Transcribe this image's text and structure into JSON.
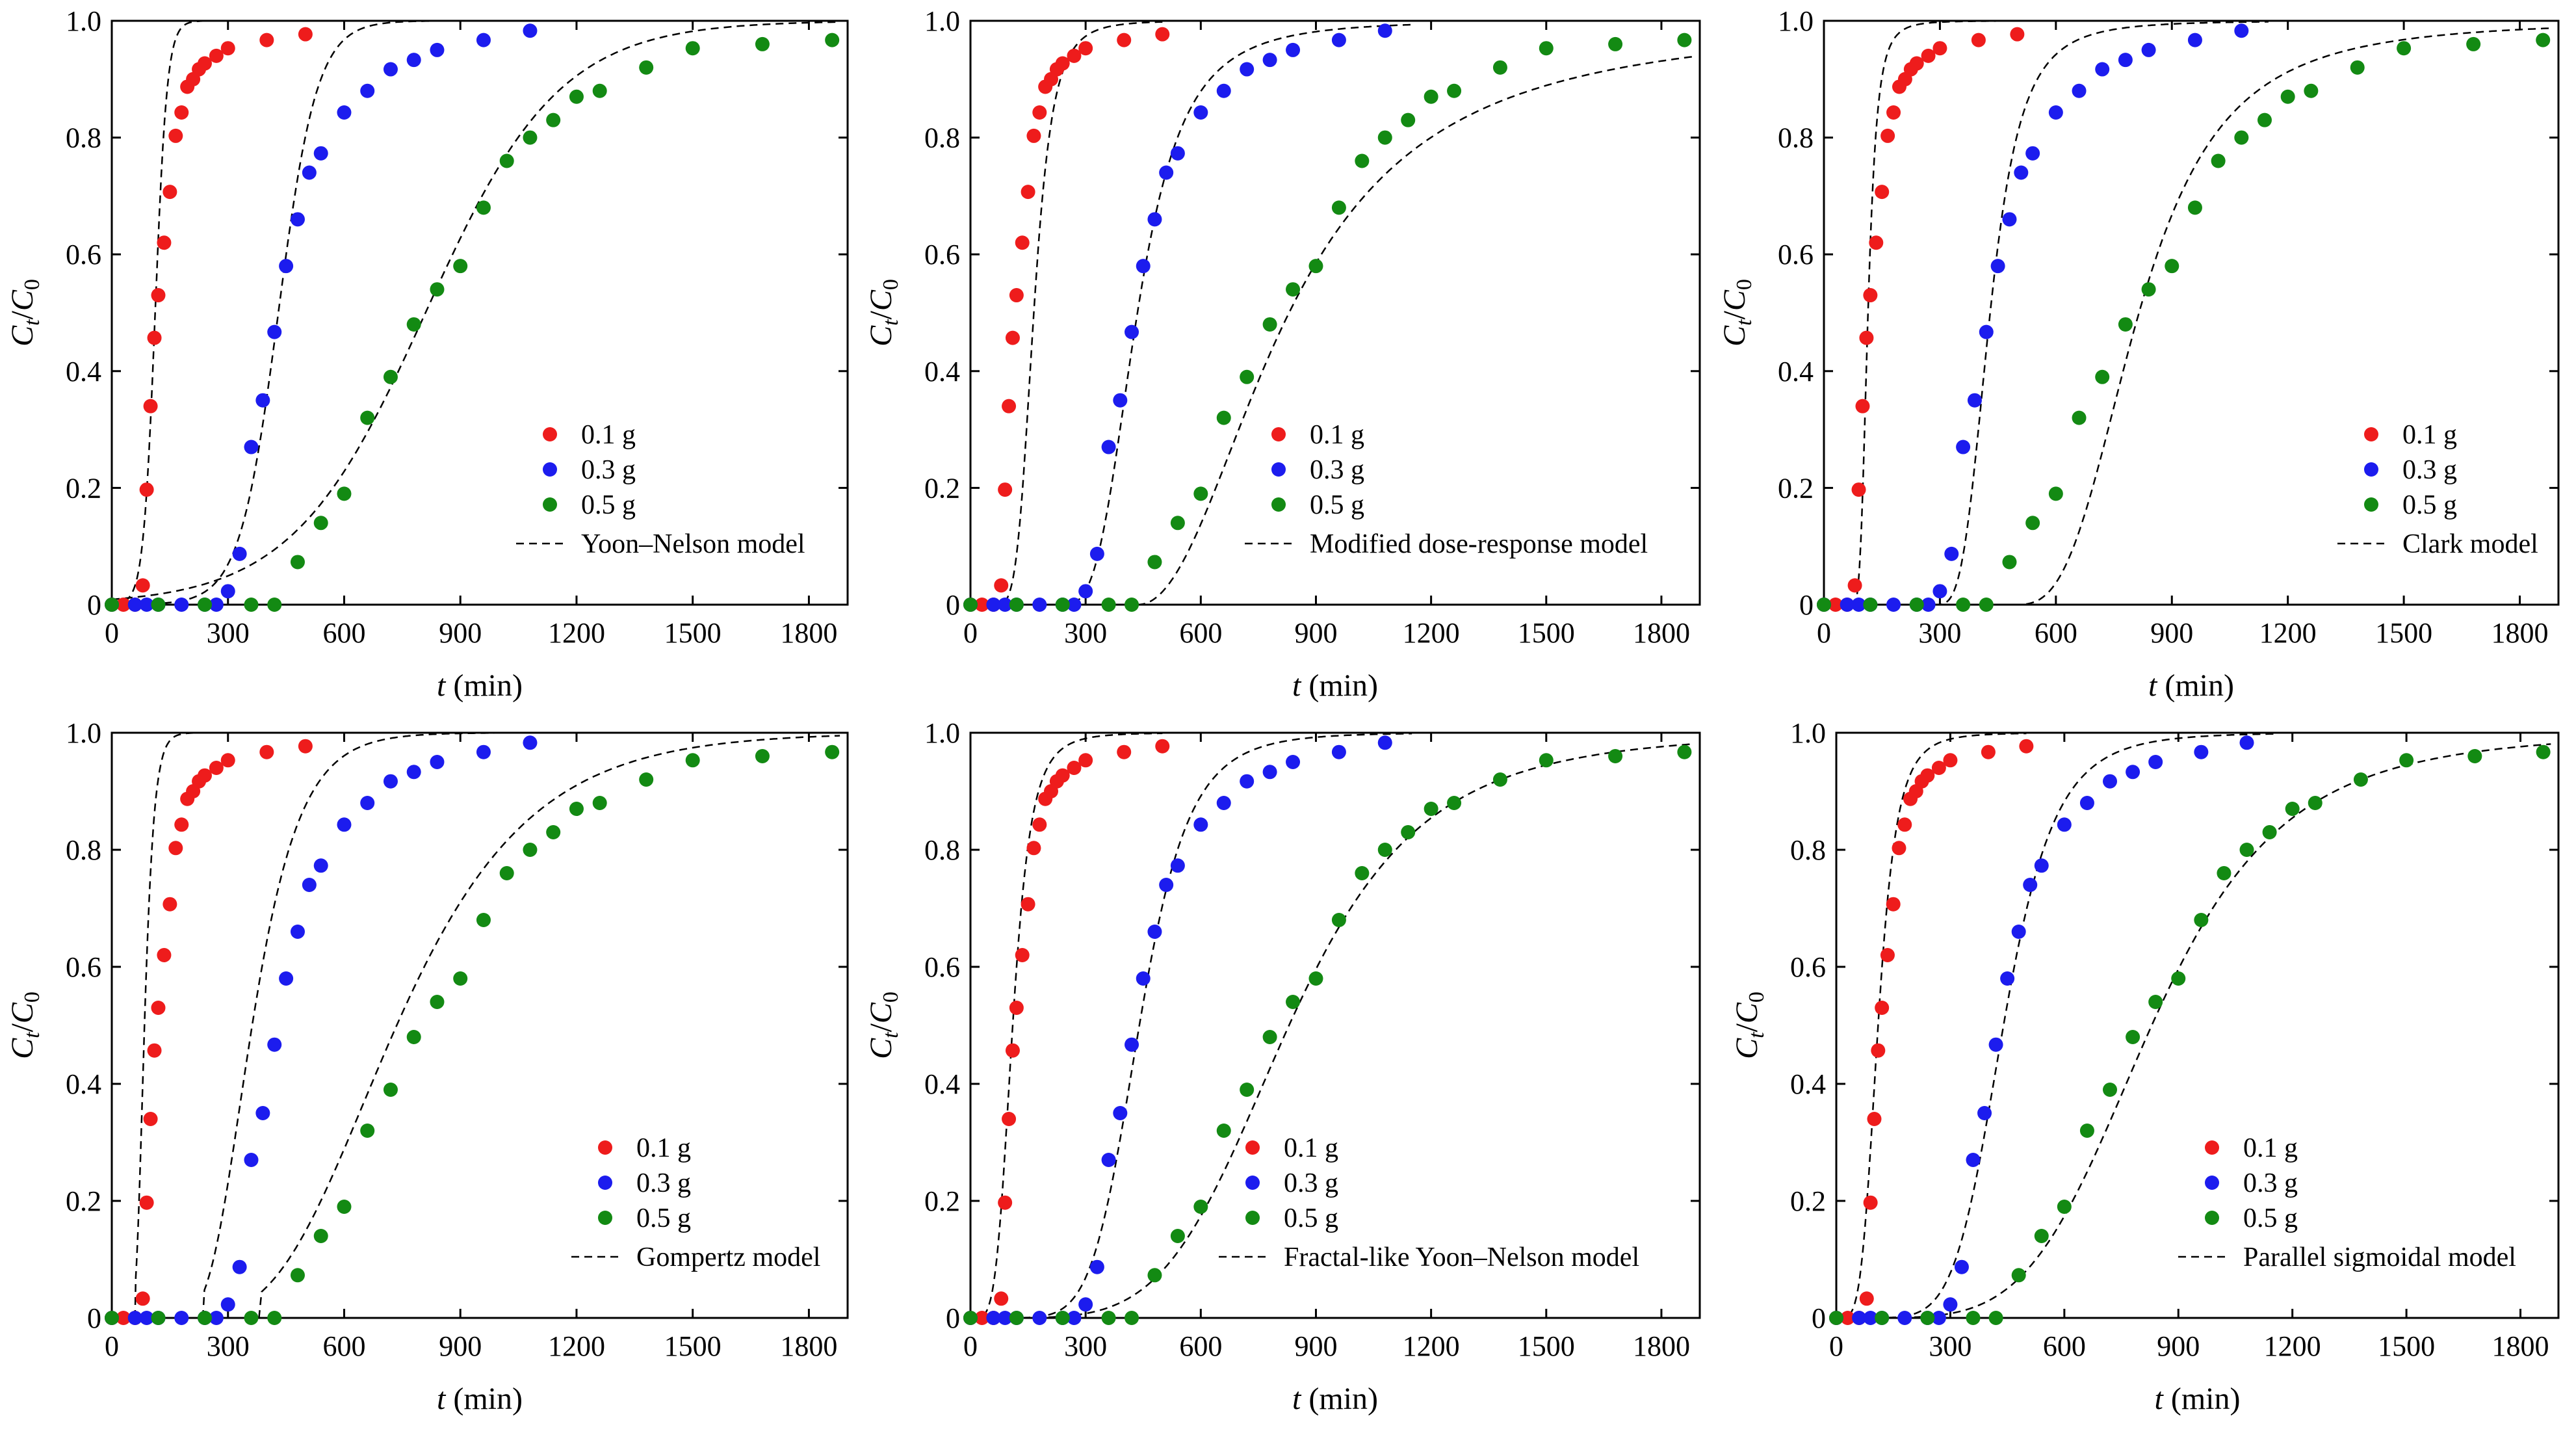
{
  "chart_data": [
    {
      "type": "scatter",
      "model": "Yoon–Nelson model",
      "xlabel": {
        "symbol": "t",
        "unit": " (min)"
      },
      "ylabel": {
        "num": "C",
        "num_sub": "t",
        "den": "C",
        "den_sub": "0"
      },
      "xlim": [
        0,
        1900
      ],
      "ylim": [
        0,
        1.0
      ],
      "xticks": [
        0,
        300,
        600,
        900,
        1200,
        1500,
        1800
      ],
      "yticks": [
        0,
        0.2,
        0.4,
        0.6,
        0.8,
        1.0
      ],
      "legend_position": "bottom-right",
      "series_ref": "shared",
      "fits": [
        {
          "name": "0.1 g",
          "fn": "logistic",
          "params": {
            "tau": 112,
            "k": 0.065,
            "a": 1
          },
          "range": [
            0,
            500
          ]
        },
        {
          "name": "0.3 g",
          "fn": "logistic",
          "params": {
            "tau": 430,
            "k": 0.02,
            "a": 1
          },
          "range": [
            0,
            1150
          ]
        },
        {
          "name": "0.5 g",
          "fn": "logistic",
          "params": {
            "tau": 810,
            "k": 0.0058,
            "a": 1
          },
          "range": [
            0,
            1880
          ]
        }
      ]
    },
    {
      "type": "scatter",
      "model": "Modified dose-response model",
      "xlabel": {
        "symbol": "t",
        "unit": " (min)"
      },
      "ylabel": {
        "num": "C",
        "num_sub": "t",
        "den": "C",
        "den_sub": "0"
      },
      "xlim": [
        0,
        1900
      ],
      "ylim": [
        0,
        1.0
      ],
      "xticks": [
        0,
        300,
        600,
        900,
        1200,
        1500,
        1800
      ],
      "yticks": [
        0,
        0.2,
        0.4,
        0.6,
        0.8,
        1.0
      ],
      "legend_position": "bottom-right",
      "series_ref": "shared",
      "fits": [
        {
          "name": "0.1 g",
          "fn": "doseresp",
          "params": {
            "b": 110,
            "n": 4.5,
            "t0": 55
          },
          "range": [
            55,
            500
          ]
        },
        {
          "name": "0.3 g",
          "fn": "doseresp",
          "params": {
            "b": 200,
            "n": 3.3,
            "t0": 235
          },
          "range": [
            235,
            1150
          ]
        },
        {
          "name": "0.5 g",
          "fn": "doseresp",
          "params": {
            "b": 395,
            "n": 2.1,
            "t0": 435
          },
          "range": [
            435,
            1880
          ]
        }
      ]
    },
    {
      "type": "scatter",
      "model": "Clark model",
      "xlabel": {
        "symbol": "t",
        "unit": " (min)"
      },
      "ylabel": {
        "num": "C",
        "num_sub": "t",
        "den": "C",
        "den_sub": "0"
      },
      "xlim": [
        0,
        1900
      ],
      "ylim": [
        0,
        1.0
      ],
      "xticks": [
        0,
        300,
        600,
        900,
        1200,
        1500,
        1800
      ],
      "yticks": [
        0,
        0.2,
        0.4,
        0.6,
        0.8,
        1.0
      ],
      "legend_position": "bottom-right",
      "series_ref": "shared",
      "fits": [
        {
          "name": "0.1 g",
          "fn": "doseresp",
          "params": {
            "b": 42,
            "n": 3.6,
            "t0": 72
          },
          "range": [
            72,
            500
          ]
        },
        {
          "name": "0.3 g",
          "fn": "doseresp",
          "params": {
            "b": 145,
            "n": 3.6,
            "t0": 285
          },
          "range": [
            285,
            1150
          ]
        },
        {
          "name": "0.5 g",
          "fn": "doseresp",
          "params": {
            "b": 325,
            "n": 3.0,
            "t0": 490
          },
          "range": [
            490,
            1880
          ]
        }
      ]
    },
    {
      "type": "scatter",
      "model": "Gompertz model",
      "xlabel": {
        "symbol": "t",
        "unit": " (min)"
      },
      "ylabel": {
        "num": "C",
        "num_sub": "t",
        "den": "C",
        "den_sub": "0"
      },
      "xlim": [
        0,
        1900
      ],
      "ylim": [
        0,
        1.0
      ],
      "xticks": [
        0,
        300,
        600,
        900,
        1200,
        1500,
        1800
      ],
      "yticks": [
        0,
        0.2,
        0.4,
        0.6,
        0.8,
        1.0
      ],
      "legend_position": "bottom-right",
      "series_ref": "shared",
      "fits": [
        {
          "name": "0.1 g",
          "fn": "gompertz",
          "params": {
            "t0": 60,
            "b": 0.06,
            "c": 3.0
          },
          "range": [
            60,
            500
          ]
        },
        {
          "name": "0.3 g",
          "fn": "gompertz",
          "params": {
            "t0": 235,
            "b": 0.012,
            "c": 3.2
          },
          "range": [
            235,
            1150
          ]
        },
        {
          "name": "0.5 g",
          "fn": "gompertz",
          "params": {
            "t0": 380,
            "b": 0.0043,
            "c": 3.2
          },
          "range": [
            380,
            1880
          ]
        }
      ]
    },
    {
      "type": "scatter",
      "model": "Fractal-like Yoon–Nelson model",
      "xlabel": {
        "symbol": "t",
        "unit": " (min)"
      },
      "ylabel": {
        "num": "C",
        "num_sub": "t",
        "den": "C",
        "den_sub": "0"
      },
      "xlim": [
        0,
        1900
      ],
      "ylim": [
        0,
        1.0
      ],
      "xticks": [
        0,
        300,
        600,
        900,
        1200,
        1500,
        1800
      ],
      "yticks": [
        0,
        0.2,
        0.4,
        0.6,
        0.8,
        1.0
      ],
      "legend_position": "bottom-right",
      "series_ref": "shared",
      "fits": [
        {
          "name": "0.1 g",
          "fn": "doseresp",
          "params": {
            "b": 110,
            "n": 4.6,
            "t0": 0
          },
          "range": [
            0,
            500
          ]
        },
        {
          "name": "0.3 g",
          "fn": "doseresp",
          "params": {
            "b": 440,
            "n": 6.8,
            "t0": 0
          },
          "range": [
            0,
            1150
          ]
        },
        {
          "name": "0.5 g",
          "fn": "doseresp",
          "params": {
            "b": 830,
            "n": 4.8,
            "t0": 0
          },
          "range": [
            0,
            1880
          ]
        }
      ]
    },
    {
      "type": "scatter",
      "model": "Parallel sigmoidal model",
      "xlabel": {
        "symbol": "t",
        "unit": " (min)"
      },
      "ylabel": {
        "num": "C",
        "num_sub": "t",
        "den": "C",
        "den_sub": "0"
      },
      "xlim": [
        0,
        1900
      ],
      "ylim": [
        0,
        1.0
      ],
      "xticks": [
        0,
        300,
        600,
        900,
        1200,
        1500,
        1800
      ],
      "yticks": [
        0,
        0.2,
        0.4,
        0.6,
        0.8,
        1.0
      ],
      "legend_position": "bottom-right",
      "series_ref": "shared",
      "fits": [
        {
          "name": "0.1 g",
          "fn": "doseresp",
          "params": {
            "b": 110,
            "n": 4.5,
            "t0": 0
          },
          "range": [
            0,
            500
          ]
        },
        {
          "name": "0.3 g",
          "fn": "doseresp",
          "params": {
            "b": 440,
            "n": 6.5,
            "t0": 0
          },
          "range": [
            0,
            1150
          ]
        },
        {
          "name": "0.5 g",
          "fn": "doseresp",
          "params": {
            "b": 830,
            "n": 4.8,
            "t0": 0
          },
          "range": [
            0,
            1880
          ]
        }
      ]
    }
  ],
  "series": [
    {
      "name": "0.1 g",
      "color": "#ee1c1c",
      "x": [
        0,
        30,
        60,
        80,
        90,
        100,
        110,
        120,
        135,
        150,
        165,
        180,
        195,
        210,
        225,
        240,
        270,
        300,
        400,
        500
      ],
      "y": [
        0,
        0,
        0,
        0.033,
        0.197,
        0.34,
        0.457,
        0.53,
        0.62,
        0.707,
        0.803,
        0.843,
        0.887,
        0.9,
        0.917,
        0.927,
        0.94,
        0.953,
        0.967,
        0.977
      ]
    },
    {
      "name": "0.3 g",
      "color": "#1c1cee",
      "x": [
        0,
        60,
        90,
        120,
        180,
        240,
        270,
        300,
        330,
        360,
        390,
        420,
        450,
        480,
        510,
        540,
        600,
        660,
        720,
        780,
        840,
        960,
        1080
      ],
      "y": [
        0,
        0,
        0,
        0,
        0,
        0,
        0,
        0.023,
        0.087,
        0.27,
        0.35,
        0.467,
        0.58,
        0.66,
        0.74,
        0.773,
        0.843,
        0.88,
        0.917,
        0.933,
        0.95,
        0.967,
        0.983
      ]
    },
    {
      "name": "0.5 g",
      "color": "#138a13",
      "x": [
        0,
        120,
        240,
        360,
        420,
        480,
        540,
        600,
        660,
        720,
        780,
        840,
        900,
        960,
        1020,
        1080,
        1140,
        1200,
        1260,
        1380,
        1500,
        1680,
        1860
      ],
      "y": [
        0,
        0,
        0,
        0,
        0,
        0.073,
        0.14,
        0.19,
        0.32,
        0.39,
        0.48,
        0.54,
        0.58,
        0.68,
        0.76,
        0.8,
        0.83,
        0.87,
        0.88,
        0.92,
        0.953,
        0.96,
        0.967
      ]
    }
  ]
}
